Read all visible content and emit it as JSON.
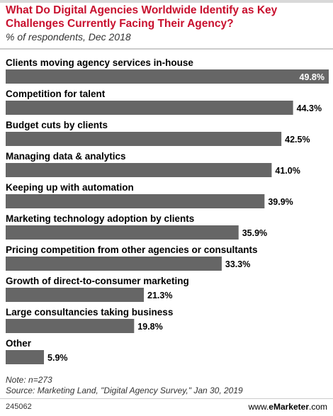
{
  "header": {
    "title": "What Do Digital Agencies Worldwide Identify as Key Challenges Currently Facing Their Agency?",
    "subtitle": "% of respondents, Dec 2018"
  },
  "footer": {
    "note": "Note: n=273",
    "source": "Source: Marketing Land, \"Digital Agency Survey,\" Jan 30, 2019",
    "chart_id": "245062",
    "brand_prefix": "www.",
    "brand_name": "eMarketer",
    "brand_suffix": ".com"
  },
  "colors": {
    "title": "#c8102e",
    "bar": "#666666",
    "top_bar": "#666666"
  },
  "chart_data": {
    "type": "bar",
    "orientation": "horizontal",
    "categories": [
      "Clients moving agency services in-house",
      "Competition for talent",
      "Budget cuts by clients",
      "Managing data & analytics",
      "Keeping up with automation",
      "Marketing technology adoption by clients",
      "Pricing competition from other agencies or consultants",
      "Growth of direct-to-consumer marketing",
      "Large consultancies taking business",
      "Other"
    ],
    "values": [
      49.8,
      44.3,
      42.5,
      41.0,
      39.9,
      35.9,
      33.3,
      21.3,
      19.8,
      5.9
    ],
    "value_labels": [
      "49.8%",
      "44.3%",
      "42.5%",
      "41.0%",
      "39.9%",
      "35.9%",
      "33.3%",
      "21.3%",
      "19.8%",
      "5.9%"
    ],
    "xlim": [
      0,
      49.8
    ],
    "grid": false,
    "legend": "none"
  }
}
